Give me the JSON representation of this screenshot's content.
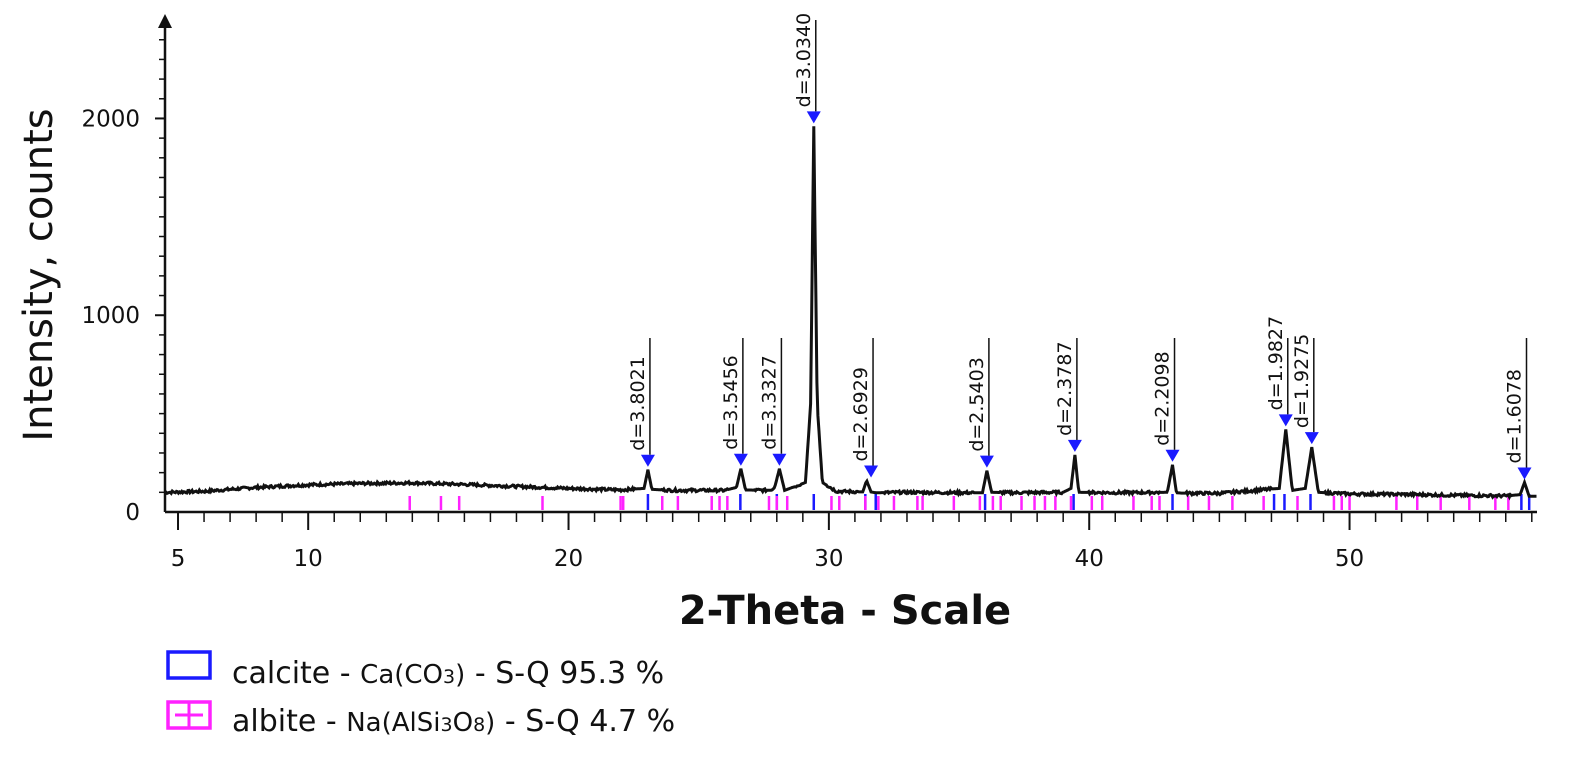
{
  "chart_data": {
    "type": "line",
    "title": "",
    "xlabel": "2-Theta - Scale",
    "ylabel": "Intensity, counts",
    "xlim": [
      4.5,
      57.2
    ],
    "ylim": [
      0,
      2480
    ],
    "x_ticks": [
      5,
      10,
      20,
      30,
      40,
      50
    ],
    "x_tick_labels": [
      "5",
      "10",
      "20",
      "30",
      "40",
      "50"
    ],
    "y_ticks": [
      0,
      1000,
      2000
    ],
    "y_tick_labels": [
      "0",
      "1000",
      "2000"
    ],
    "grid": false,
    "series": [
      {
        "color": "#111111",
        "x": [
          4.5,
          6,
          8,
          10,
          12,
          14,
          16,
          18,
          20,
          22,
          22.9,
          23.05,
          23.2,
          24,
          26,
          26.45,
          26.62,
          26.8,
          27.8,
          27.92,
          28.1,
          28.3,
          29.1,
          29.3,
          29.42,
          29.55,
          29.75,
          30.3,
          31.3,
          31.45,
          31.62,
          31.8,
          33,
          35,
          35.9,
          36.07,
          36.25,
          37,
          39,
          39.3,
          39.45,
          39.6,
          41,
          43.0,
          43.2,
          43.35,
          43.55,
          45,
          47.3,
          47.55,
          47.8,
          48.3,
          48.55,
          48.8,
          50,
          52,
          54,
          56,
          56.55,
          56.72,
          56.9,
          57.2
        ],
        "y": [
          100,
          105,
          125,
          138,
          145,
          148,
          140,
          130,
          120,
          112,
          120,
          215,
          115,
          110,
          110,
          125,
          220,
          112,
          110,
          125,
          220,
          110,
          150,
          550,
          1960,
          550,
          150,
          105,
          102,
          160,
          102,
          98,
          100,
          98,
          98,
          210,
          100,
          98,
          100,
          120,
          290,
          100,
          98,
          100,
          240,
          98,
          96,
          95,
          120,
          420,
          110,
          120,
          330,
          100,
          92,
          90,
          85,
          82,
          88,
          150,
          80,
          80
        ]
      }
    ],
    "peaks": [
      {
        "x": 23.05,
        "y": 215,
        "label": "d=3.8021"
      },
      {
        "x": 26.62,
        "y": 220,
        "label": "d=3.5456"
      },
      {
        "x": 28.1,
        "y": 220,
        "label": "d=3.3327"
      },
      {
        "x": 29.42,
        "y": 1960,
        "label": "d=3.0340"
      },
      {
        "x": 31.62,
        "y": 160,
        "label": "d=2.6929"
      },
      {
        "x": 36.07,
        "y": 210,
        "label": "d=2.5403"
      },
      {
        "x": 39.45,
        "y": 290,
        "label": "d=2.3787"
      },
      {
        "x": 43.2,
        "y": 240,
        "label": "d=2.2098"
      },
      {
        "x": 47.55,
        "y": 420,
        "label": "d=1.9827"
      },
      {
        "x": 48.55,
        "y": 330,
        "label": "d=1.9275"
      },
      {
        "x": 56.72,
        "y": 150,
        "label": "d=1.6078"
      }
    ],
    "reference_phases": [
      {
        "name": "calcite",
        "formula": "Ca(CO3)",
        "quant": "S-Q 95.3 %",
        "color": "#1a1aff",
        "sticks": [
          23.05,
          26.6,
          28.0,
          29.42,
          31.4,
          31.8,
          36.0,
          39.4,
          43.2,
          47.1,
          47.5,
          48.5,
          56.6,
          56.9
        ]
      },
      {
        "name": "albite",
        "formula": "Na(AlSi3O8)",
        "quant": "S-Q 4.7 %",
        "color": "#ff22ff",
        "sticks": [
          13.9,
          15.1,
          15.8,
          19.0,
          22.0,
          22.1,
          23.6,
          24.2,
          25.5,
          25.8,
          26.1,
          27.7,
          28.0,
          28.4,
          30.1,
          30.4,
          31.4,
          31.9,
          32.5,
          33.4,
          33.6,
          34.8,
          35.8,
          36.3,
          36.6,
          37.4,
          37.9,
          38.3,
          38.7,
          39.3,
          40.1,
          40.5,
          41.7,
          42.4,
          42.7,
          43.8,
          44.6,
          45.5,
          46.7,
          48.0,
          49.4,
          49.7,
          50.0,
          51.8,
          52.6,
          53.5,
          54.6,
          55.6,
          56.1
        ]
      }
    ]
  },
  "legend": {
    "calcite": {
      "name": "calcite",
      "formula": "Ca(CO",
      "sub": "3",
      "formula_end": ")",
      "quant": "S-Q 95.3 %"
    },
    "albite": {
      "name": "albite",
      "formula": "Na(AlSi",
      "sub1": "3",
      "mid": "O",
      "sub2": "8",
      "formula_end": ")",
      "quant": "S-Q 4.7 %"
    }
  }
}
